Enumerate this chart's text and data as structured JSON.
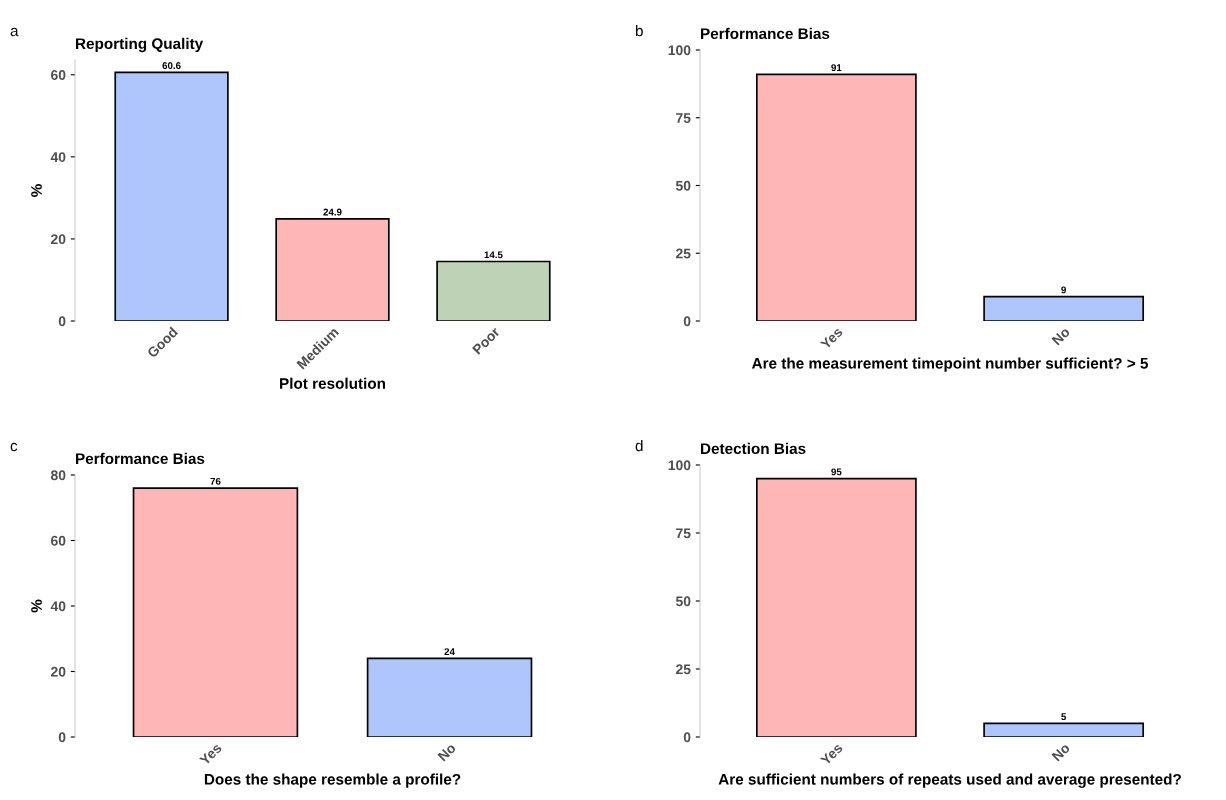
{
  "chart_data": [
    {
      "type": "bar",
      "title": "Reporting Quality",
      "xlabel": "Plot resolution",
      "ylabel": "%",
      "annotations": [
        "a"
      ],
      "categories": [
        "Good",
        "Medium",
        "Poor"
      ],
      "values": [
        60.6,
        24.9,
        14.5
      ],
      "colors": [
        "#aec6fc",
        "#ffb6b6",
        "#bed3b5"
      ],
      "ylim": [
        0,
        63.6
      ],
      "yticks": [
        0,
        20,
        40,
        60
      ],
      "data_labels": true,
      "grid": false,
      "legend": false
    },
    {
      "type": "bar",
      "title": "Performance Bias",
      "xlabel": "Are the measurement timepoint number sufficient? > 5",
      "annotations": [
        "b"
      ],
      "categories": [
        "Yes",
        "No"
      ],
      "values": [
        91,
        9
      ],
      "colors": [
        "#ffb6b6",
        "#aec6fc"
      ],
      "ylim": [
        0,
        100
      ],
      "yticks": [
        0,
        25,
        50,
        75,
        100
      ],
      "data_labels": true,
      "grid": false,
      "legend": false
    },
    {
      "type": "bar",
      "title": "Performance Bias",
      "xlabel": "Does the shape resemble a profile?",
      "ylabel": "%",
      "annotations": [
        "c"
      ],
      "categories": [
        "Yes",
        "No"
      ],
      "values": [
        76,
        24
      ],
      "colors": [
        "#ffb6b6",
        "#aec6fc"
      ],
      "ylim": [
        0,
        80
      ],
      "yticks": [
        0,
        20,
        40,
        60,
        80
      ],
      "data_labels": true,
      "grid": false,
      "legend": false
    },
    {
      "type": "bar",
      "title": "Detection Bias",
      "xlabel": "Are sufficient numbers of repeats used and average presented?",
      "annotations": [
        "d"
      ],
      "categories": [
        "Yes",
        "No"
      ],
      "values": [
        95,
        5
      ],
      "colors": [
        "#ffb6b6",
        "#aec6fc"
      ],
      "ylim": [
        0,
        100
      ],
      "yticks": [
        0,
        25,
        50,
        75,
        100
      ],
      "data_labels": true,
      "grid": false,
      "legend": false
    }
  ]
}
